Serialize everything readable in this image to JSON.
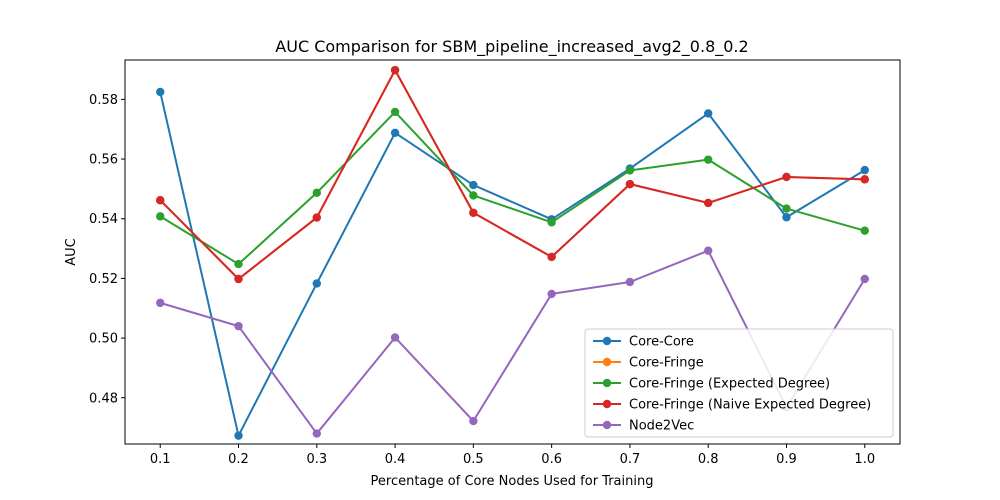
{
  "chart_data": {
    "type": "line",
    "title": "AUC Comparison for SBM_pipeline_increased_avg2_0.8_0.2",
    "xlabel": "Percentage of Core Nodes Used for Training",
    "ylabel": "AUC",
    "x": [
      0.1,
      0.2,
      0.3,
      0.4,
      0.5,
      0.6,
      0.7,
      0.8,
      0.9,
      1.0
    ],
    "x_tick_labels": [
      "0.1",
      "0.2",
      "0.3",
      "0.4",
      "0.5",
      "0.6",
      "0.7",
      "0.8",
      "0.9",
      "1.0"
    ],
    "y_ticks": [
      0.48,
      0.5,
      0.52,
      0.54,
      0.56,
      0.58
    ],
    "y_tick_labels": [
      "0.48",
      "0.50",
      "0.52",
      "0.54",
      "0.56",
      "0.58"
    ],
    "xlim": [
      0.055,
      1.045
    ],
    "ylim": [
      0.4645,
      0.5932
    ],
    "grid": false,
    "legend_position": "bottom-right",
    "series": [
      {
        "name": "Core-Core",
        "color": "#1f77b4",
        "values": [
          0.5825,
          0.4673,
          0.5183,
          0.5688,
          0.5513,
          0.5398,
          0.5568,
          0.5753,
          0.5405,
          0.5563
        ]
      },
      {
        "name": "Core-Fringe",
        "color": "#ff7f0e",
        "values": [
          0.5462,
          0.5198,
          0.5404,
          0.5898,
          0.542,
          0.5272,
          0.5516,
          0.5453,
          0.554,
          0.5532
        ]
      },
      {
        "name": "Core-Fringe (Expected Degree)",
        "color": "#2ca02c",
        "values": [
          0.5408,
          0.5248,
          0.5487,
          0.5758,
          0.5478,
          0.5388,
          0.5562,
          0.5598,
          0.5434,
          0.536
        ]
      },
      {
        "name": "Core-Fringe (Naive Expected Degree)",
        "color": "#d62728",
        "values": [
          0.5462,
          0.5198,
          0.5404,
          0.5898,
          0.542,
          0.5272,
          0.5516,
          0.5453,
          0.554,
          0.5532
        ]
      },
      {
        "name": "Node2Vec",
        "color": "#9467bd",
        "values": [
          0.5118,
          0.504,
          0.468,
          0.5002,
          0.4722,
          0.5148,
          0.5188,
          0.5293,
          0.4768,
          0.5198
        ]
      }
    ]
  }
}
